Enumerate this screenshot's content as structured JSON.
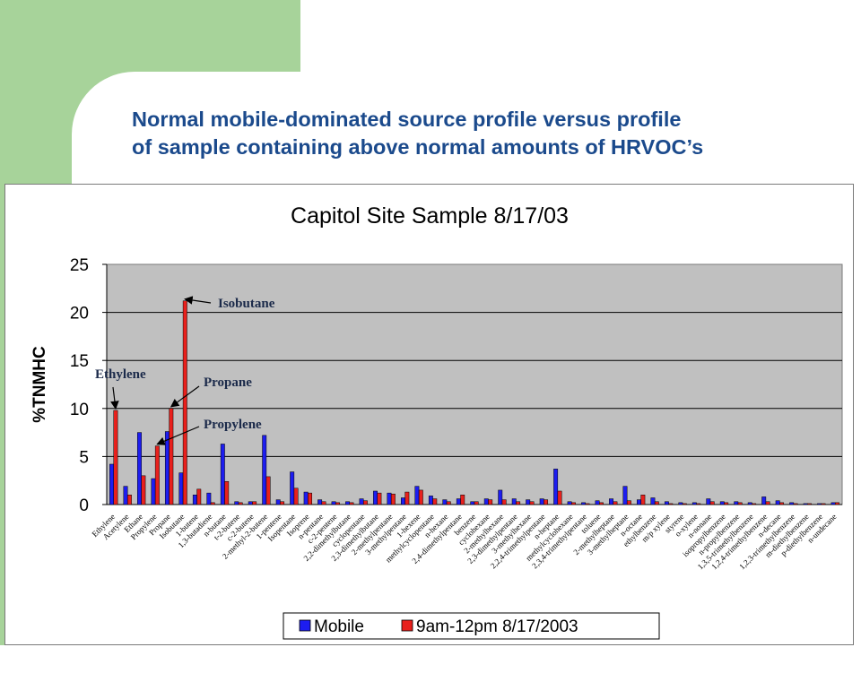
{
  "slide": {
    "title_line1": "Normal mobile-dominated source profile versus profile",
    "title_line2": "of sample containing above normal amounts of HRVOC’s"
  },
  "colors": {
    "mobile": "#1d1df0",
    "sample": "#e8201c",
    "plot_bg": "#c0c0c0",
    "title": "#1b4a8c",
    "green": "#a7d39a"
  },
  "chart_data": {
    "type": "bar",
    "title": "Capitol Site Sample 8/17/03",
    "ylabel": "%TNMHC",
    "xlabel": "",
    "ylim": [
      0,
      25
    ],
    "yticks": [
      0,
      5,
      10,
      15,
      20,
      25
    ],
    "grid": true,
    "legend_position": "bottom",
    "categories": [
      "Ethylene",
      "Acetylene",
      "Ethane",
      "Propylene",
      "Propane",
      "Isobutane",
      "1-butene",
      "1,3-butadiene",
      "n-butane",
      "t-2-butene",
      "c-2-butene",
      "2-methyl-2-butene",
      "1-pentene",
      "Isopentane",
      "Isoprene",
      "n-pentane",
      "c-2-pentene",
      "2,2-dimethylbutane",
      "cyclopentane",
      "2,3-dimethylbutane",
      "2-methylpentane",
      "3-methylpentane",
      "1-hexene",
      "methylcyclopentane",
      "n-hexane",
      "2,4-dimethylpentane",
      "benzene",
      "cyclohexane",
      "2-methylhexane",
      "2,3-dimethylpentane",
      "3-methylhexane",
      "2,2,4-trimethylpentane",
      "n-heptane",
      "methylcyclohexane",
      "2,3,4-trimethylpentane",
      "toluene",
      "2-methylheptane",
      "3-methylheptane",
      "n-octane",
      "ethylbenzene",
      "m/p xylene",
      "styrene",
      "o-xylene",
      "n-nonane",
      "isopropylbenzene",
      "n-propylbenzene",
      "1,3,5-trimethylbenzene",
      "1,2,4-trimethylbenzene",
      "n-decane",
      "1,2,3-trimethylbenzene",
      "m-diethylbenzene",
      "p-diethylbenzene",
      "n-undecane"
    ],
    "series": [
      {
        "name": "Mobile",
        "values": [
          4.2,
          1.9,
          7.5,
          2.7,
          7.6,
          3.3,
          1.0,
          1.2,
          6.3,
          0.3,
          0.3,
          7.2,
          0.5,
          3.4,
          1.3,
          0.5,
          0.3,
          0.3,
          0.6,
          1.4,
          1.2,
          0.7,
          1.9,
          0.9,
          0.5,
          0.6,
          0.3,
          0.6,
          1.5,
          0.6,
          0.5,
          0.6,
          3.7,
          0.3,
          0.2,
          0.4,
          0.6,
          1.9,
          0.5,
          0.7,
          0.3,
          0.2,
          0.2,
          0.6,
          0.3,
          0.3,
          0.2,
          0.8,
          0.4,
          0.2,
          0.1,
          0.1,
          0.2
        ]
      },
      {
        "name": "9am-12pm 8/17/2003",
        "values": [
          9.8,
          1.0,
          3.0,
          6.1,
          10.0,
          21.2,
          1.6,
          0.2,
          2.4,
          0.2,
          0.3,
          2.9,
          0.3,
          1.7,
          1.2,
          0.3,
          0.2,
          0.2,
          0.4,
          1.2,
          1.1,
          1.3,
          1.5,
          0.6,
          0.3,
          1.0,
          0.3,
          0.5,
          0.5,
          0.3,
          0.3,
          0.5,
          1.4,
          0.2,
          0.1,
          0.2,
          0.3,
          0.4,
          1.0,
          0.3,
          0.1,
          0.1,
          0.1,
          0.3,
          0.2,
          0.2,
          0.1,
          0.3,
          0.2,
          0.1,
          0.1,
          0.1,
          0.2
        ]
      }
    ],
    "annotations": [
      {
        "text": "Isobutane",
        "category": "Isobutane",
        "series": 1
      },
      {
        "text": "Ethylene",
        "category": "Ethylene",
        "series": 1
      },
      {
        "text": "Propane",
        "category": "Propane",
        "series": 1
      },
      {
        "text": "Propylene",
        "category": "Propylene",
        "series": 1
      }
    ]
  }
}
